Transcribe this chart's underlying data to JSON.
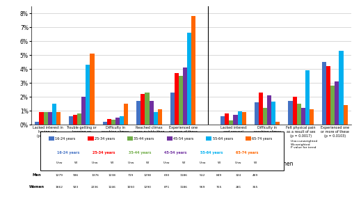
{
  "colors": {
    "16-24": "#4472C4",
    "25-34": "#FF0000",
    "35-44": "#70AD47",
    "45-54": "#7030A0",
    "55-64": "#00B0F0",
    "65-74": "#FF6600"
  },
  "men_categories": [
    "Lacked interest in\nhaving sex\n(p = 0.3631)",
    "Trouble getting or\nkeeping an\nerection\n(p < 0.0001)",
    "Difficulty in\nreaching climax\n(p = 0.1696)",
    "Reached climax\nmore quickly than\nyou would like\n(p = 0.3357)",
    "Experienced one\nor more of these\n(p = 0.0008)"
  ],
  "women_categories": [
    "Lacked interest\nand arousal\n(p = 0.4108)",
    "Difficulty in\nreaching climax\n(p = 0.0189)",
    "Felt physical pain\nas a result of sex\n(p = 0.0017)",
    "Experienced one\nor more of these\n(p = 0.0103)"
  ],
  "men_data": {
    "16-24": [
      0.2,
      0.6,
      0.2,
      1.7,
      2.3
    ],
    "25-34": [
      0.9,
      0.7,
      0.4,
      2.2,
      3.7
    ],
    "35-44": [
      0.9,
      0.8,
      0.35,
      2.3,
      3.5
    ],
    "45-54": [
      0.9,
      2.0,
      0.5,
      1.7,
      4.1
    ],
    "55-64": [
      1.5,
      4.3,
      0.6,
      0.9,
      6.6
    ],
    "65-74": [
      0.9,
      5.1,
      1.5,
      1.1,
      7.8
    ]
  },
  "women_data": {
    "16-24": [
      0.6,
      1.6,
      1.7,
      4.5
    ],
    "25-34": [
      0.8,
      2.3,
      2.0,
      4.2
    ],
    "35-44": [
      0.3,
      1.2,
      1.5,
      2.8
    ],
    "45-54": [
      0.7,
      2.1,
      1.2,
      3.1
    ],
    "55-64": [
      0.95,
      1.65,
      3.9,
      5.3
    ],
    "65-74": [
      0.9,
      0.2,
      1.1,
      1.4
    ]
  },
  "age_groups": [
    "16-24",
    "25-34",
    "35-44",
    "45-54",
    "55-64",
    "65-74"
  ],
  "ylim": [
    0,
    8.5
  ],
  "yticks": [
    0,
    1,
    2,
    3,
    4,
    5,
    6,
    7,
    8
  ],
  "men_label": "Men",
  "women_label": "Women",
  "table_men": [
    1279,
    936,
    1376,
    1238,
    719,
    1298,
    630,
    1186,
    512,
    849,
    324,
    469
  ],
  "table_women": [
    1662,
    923,
    2236,
    1246,
    1050,
    1290,
    871,
    1186,
    569,
    755,
    281,
    355
  ],
  "note": "Unw=unweighted\nW=weighted\nP value for trend"
}
